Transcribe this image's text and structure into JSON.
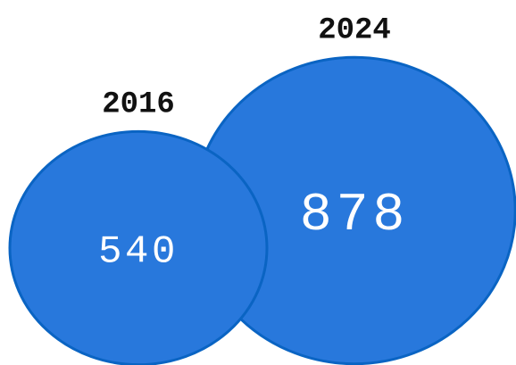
{
  "chart_data": {
    "type": "bubble",
    "title": "",
    "categories": [
      "2016",
      "2024"
    ],
    "values": [
      540,
      878
    ],
    "colors": {
      "fill": "#2878DC",
      "stroke": "#0A64C3",
      "value_text": "#ffffff",
      "year_text": "#111111"
    },
    "labels": {
      "year_2016": "2016",
      "value_2016": "540",
      "year_2024": "2024",
      "value_2024": "878"
    }
  }
}
